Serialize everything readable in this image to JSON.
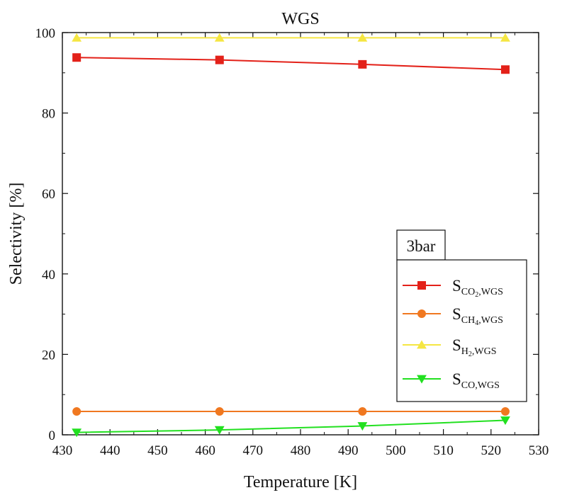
{
  "chart_data": {
    "type": "line",
    "title": "WGS",
    "xlabel": "Temperature [K]",
    "ylabel": "Selectivity [%]",
    "xlim": [
      430,
      530
    ],
    "ylim": [
      0,
      100
    ],
    "xticks": [
      430,
      440,
      450,
      460,
      470,
      480,
      490,
      500,
      510,
      520,
      530
    ],
    "yticks": [
      0,
      20,
      40,
      60,
      80,
      100
    ],
    "grid": false,
    "legend": {
      "title": "3bar",
      "placement": "right-middle"
    },
    "x": [
      433,
      463,
      493,
      523
    ],
    "series": [
      {
        "name": "S_{CO2,WGS}",
        "label_main": "S",
        "label_sub": "CO",
        "label_sub2": "2",
        "label_tail": ",WGS",
        "marker": "square",
        "color": "#e32119",
        "values": [
          93.8,
          93.2,
          92.1,
          90.8
        ]
      },
      {
        "name": "S_{CH4,WGS}",
        "label_main": "S",
        "label_sub": "CH",
        "label_sub2": "4",
        "label_tail": ",WGS",
        "marker": "circle",
        "color": "#f07820",
        "values": [
          5.8,
          5.8,
          5.8,
          5.8
        ]
      },
      {
        "name": "S_{H2,WGS}",
        "label_main": "S",
        "label_sub": "H",
        "label_sub2": "2",
        "label_tail": ",WGS",
        "marker": "triangle-up",
        "color": "#f5e642",
        "values": [
          98.7,
          98.7,
          98.7,
          98.7
        ]
      },
      {
        "name": "S_{CO,WGS}",
        "label_main": "S",
        "label_sub": "CO",
        "label_sub2": "",
        "label_tail": ",WGS",
        "marker": "triangle-down",
        "color": "#22e020",
        "values": [
          0.6,
          1.2,
          2.2,
          3.6
        ]
      }
    ]
  }
}
